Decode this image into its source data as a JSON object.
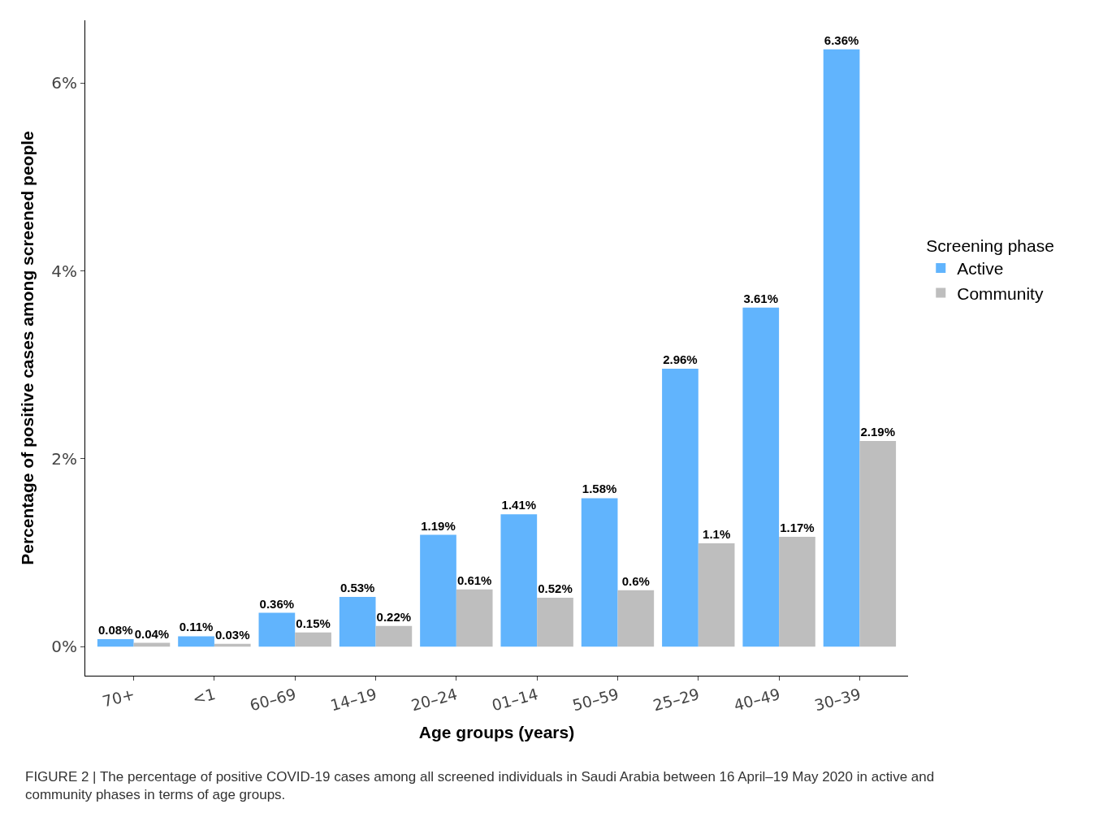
{
  "chart_data": {
    "type": "bar",
    "categories": [
      "70+",
      "<1",
      "60–69",
      "14–19",
      "20–24",
      "01–14",
      "50–59",
      "25–29",
      "40–49",
      "30–39"
    ],
    "series": [
      {
        "name": "Active",
        "color": "#61b4fd",
        "values": [
          0.08,
          0.11,
          0.36,
          0.53,
          1.19,
          1.41,
          1.58,
          2.96,
          3.61,
          6.36
        ],
        "value_labels": [
          "0.08%",
          "0.11%",
          "0.36%",
          "0.53%",
          "1.19%",
          "1.41%",
          "1.58%",
          "2.96%",
          "3.61%",
          "6.36%"
        ]
      },
      {
        "name": "Community",
        "color": "#bebebe",
        "values": [
          0.04,
          0.03,
          0.15,
          0.22,
          0.61,
          0.52,
          0.6,
          1.1,
          1.17,
          2.19
        ],
        "value_labels": [
          "0.04%",
          "0.03%",
          "0.15%",
          "0.22%",
          "0.61%",
          "0.52%",
          "0.6%",
          "1.1%",
          "1.17%",
          "2.19%"
        ]
      }
    ],
    "xlabel": "Age groups (years)",
    "ylabel": "Percentage of positive cases among screened people",
    "legend_title": "Screening phase",
    "legend": "right",
    "ylim": [
      -0.31,
      6.67
    ],
    "yticks": [
      {
        "value": 0,
        "label": "0%"
      },
      {
        "value": 2,
        "label": "2%"
      },
      {
        "value": 4,
        "label": "4%"
      },
      {
        "value": 6,
        "label": "6%"
      }
    ],
    "annotations": [
      "FIGURE 2 | The percentage of positive COVID-19 cases among all screened individuals in Saudi Arabia between 16 April–19 May 2020 in active and community phases in terms of age groups."
    ]
  }
}
